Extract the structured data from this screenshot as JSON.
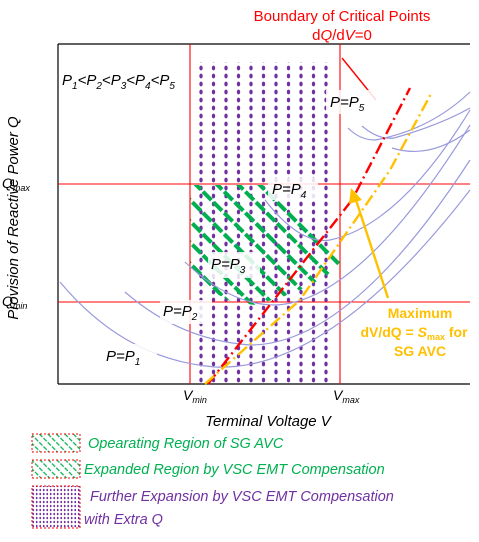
{
  "annotation": {
    "title": "Boundary of Critical Points",
    "cond_pre": "d",
    "cond_q": "Q",
    "cond_mid": "/d",
    "cond_v": "V",
    "cond_post": "=0",
    "color": "#ff0000"
  },
  "ineq": {
    "p1": "P",
    "s1": "1",
    "lt1": "<",
    "p2": "P",
    "s2": "2",
    "lt2": "<",
    "p3": "P",
    "s3": "3",
    "lt3": "<",
    "p4": "P",
    "s4": "4",
    "lt4": "<",
    "p5": "P",
    "s5": "5"
  },
  "curves": [
    {
      "pre": "P=P",
      "sub": "1"
    },
    {
      "pre": "P=P",
      "sub": "2"
    },
    {
      "pre": "P=P",
      "sub": "3"
    },
    {
      "pre": "P=P",
      "sub": "4"
    },
    {
      "pre": "P=P",
      "sub": "5"
    }
  ],
  "axes": {
    "y_label": "Provision of Reactive Power Q",
    "x_label": "Terminal Voltage V",
    "q_max_pre": "Q",
    "q_max_sub": "max",
    "q_min_pre": "Q",
    "q_min_sub": "min",
    "v_min_pre": "V",
    "v_min_sub": "min",
    "v_max_pre": "V",
    "v_max_sub": "max"
  },
  "avc": {
    "line1": "Maximum",
    "line2_a": "dV/dQ = ",
    "line2_s": "S",
    "line2_sub": "max",
    "line2_b": " for",
    "line3": "SG AVC",
    "color": "#ffc000"
  },
  "legend": [
    {
      "text": "Opearating Region of SG AVC",
      "color": "#00b050"
    },
    {
      "text": "Expanded Region by VSC EMT Compensation",
      "color": "#00b050"
    },
    {
      "text": "Further Expansion by VSC EMT Compensation",
      "text2": "with Extra Q",
      "color": "#7030a0"
    }
  ],
  "colors": {
    "curve": "#9999dd",
    "grid": "#ff0000",
    "green": "#00b050",
    "purple": "#7030a0"
  }
}
